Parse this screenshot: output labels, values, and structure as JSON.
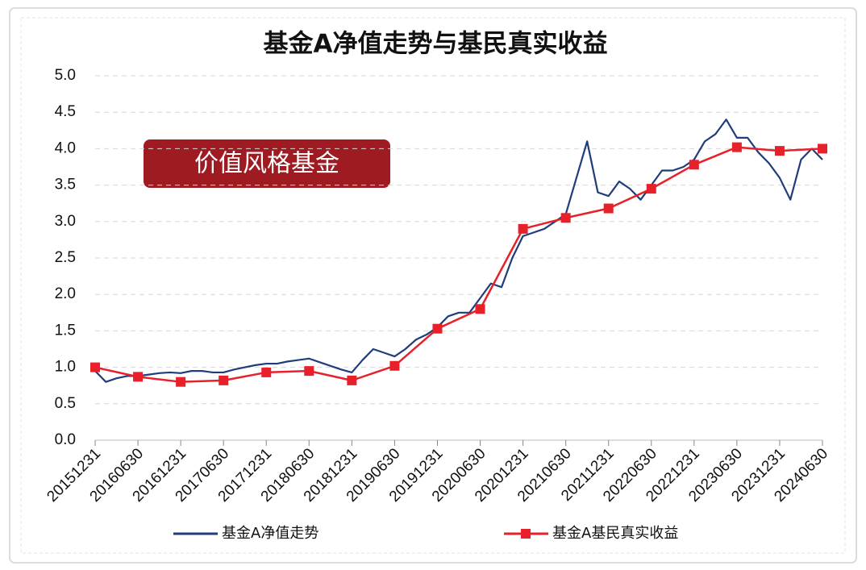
{
  "chart_data": {
    "type": "line",
    "title": "基金A净值走势与基民真实收益",
    "annotation": "价值风格基金",
    "xlim": [
      0,
      17
    ],
    "xticks": [
      {
        "value": 0,
        "label": "20151231"
      },
      {
        "value": 1,
        "label": "20160630"
      },
      {
        "value": 2,
        "label": "20161231"
      },
      {
        "value": 3,
        "label": "20170630"
      },
      {
        "value": 4,
        "label": "20171231"
      },
      {
        "value": 5,
        "label": "20180630"
      },
      {
        "value": 6,
        "label": "20181231"
      },
      {
        "value": 7,
        "label": "20190630"
      },
      {
        "value": 8,
        "label": "20191231"
      },
      {
        "value": 9,
        "label": "20200630"
      },
      {
        "value": 10,
        "label": "20201231"
      },
      {
        "value": 11,
        "label": "20210630"
      },
      {
        "value": 12,
        "label": "20211231"
      },
      {
        "value": 13,
        "label": "20220630"
      },
      {
        "value": 14,
        "label": "20221231"
      },
      {
        "value": 15,
        "label": "20230630"
      },
      {
        "value": 16,
        "label": "20231231"
      },
      {
        "value": 17,
        "label": "20240630"
      }
    ],
    "ylim": [
      0,
      5
    ],
    "yticks": [
      {
        "value": 0,
        "label": "0.0"
      },
      0.5,
      {
        "value": 1,
        "label": "1.0"
      },
      1.5,
      {
        "value": 2,
        "label": "2.0"
      },
      2.5,
      {
        "value": 3,
        "label": "3.0"
      },
      3.5,
      {
        "value": 4,
        "label": "4.0"
      },
      4.5,
      {
        "value": 5,
        "label": "5.0"
      }
    ],
    "grid": true,
    "series": [
      {
        "name": "基金A净值走势",
        "color": "#1f3d7a",
        "marker": false,
        "x": [
          0,
          0.25,
          0.5,
          0.75,
          1,
          1.25,
          1.5,
          1.75,
          2,
          2.25,
          2.5,
          2.75,
          3,
          3.25,
          3.5,
          3.75,
          4,
          4.25,
          4.5,
          4.75,
          5,
          5.25,
          5.5,
          5.75,
          6,
          6.25,
          6.5,
          6.75,
          7,
          7.25,
          7.5,
          7.75,
          8,
          8.25,
          8.5,
          8.75,
          9,
          9.25,
          9.5,
          9.75,
          10,
          10.25,
          10.5,
          10.75,
          11,
          11.25,
          11.5,
          11.75,
          12,
          12.25,
          12.5,
          12.75,
          13,
          13.25,
          13.5,
          13.75,
          14,
          14.25,
          14.5,
          14.75,
          15,
          15.25,
          15.5,
          15.75,
          16,
          16.25,
          16.5,
          16.75,
          17
        ],
        "values": [
          0.95,
          0.8,
          0.85,
          0.88,
          0.88,
          0.9,
          0.92,
          0.93,
          0.92,
          0.95,
          0.95,
          0.93,
          0.93,
          0.97,
          1.0,
          1.03,
          1.05,
          1.05,
          1.08,
          1.1,
          1.12,
          1.07,
          1.02,
          0.97,
          0.93,
          1.1,
          1.25,
          1.2,
          1.15,
          1.25,
          1.38,
          1.45,
          1.55,
          1.7,
          1.75,
          1.75,
          1.95,
          2.15,
          2.1,
          2.5,
          2.8,
          2.85,
          2.9,
          3.0,
          3.1,
          3.6,
          4.1,
          3.4,
          3.35,
          3.55,
          3.45,
          3.3,
          3.5,
          3.7,
          3.7,
          3.75,
          3.85,
          4.1,
          4.2,
          4.4,
          4.15,
          4.15,
          3.95,
          3.8,
          3.6,
          3.3,
          3.85,
          4.0,
          3.85
        ]
      },
      {
        "name": "基金A基民真实收益",
        "color": "#e8202a",
        "marker": true,
        "x": [
          0,
          1,
          2,
          3,
          4,
          5,
          6,
          7,
          8,
          9,
          10,
          11,
          12,
          13,
          14,
          15,
          16,
          17
        ],
        "values": [
          1.0,
          0.87,
          0.8,
          0.82,
          0.93,
          0.95,
          0.82,
          1.02,
          1.53,
          1.8,
          2.9,
          3.05,
          3.18,
          3.45,
          3.78,
          4.02,
          3.97,
          4.0
        ]
      }
    ]
  }
}
